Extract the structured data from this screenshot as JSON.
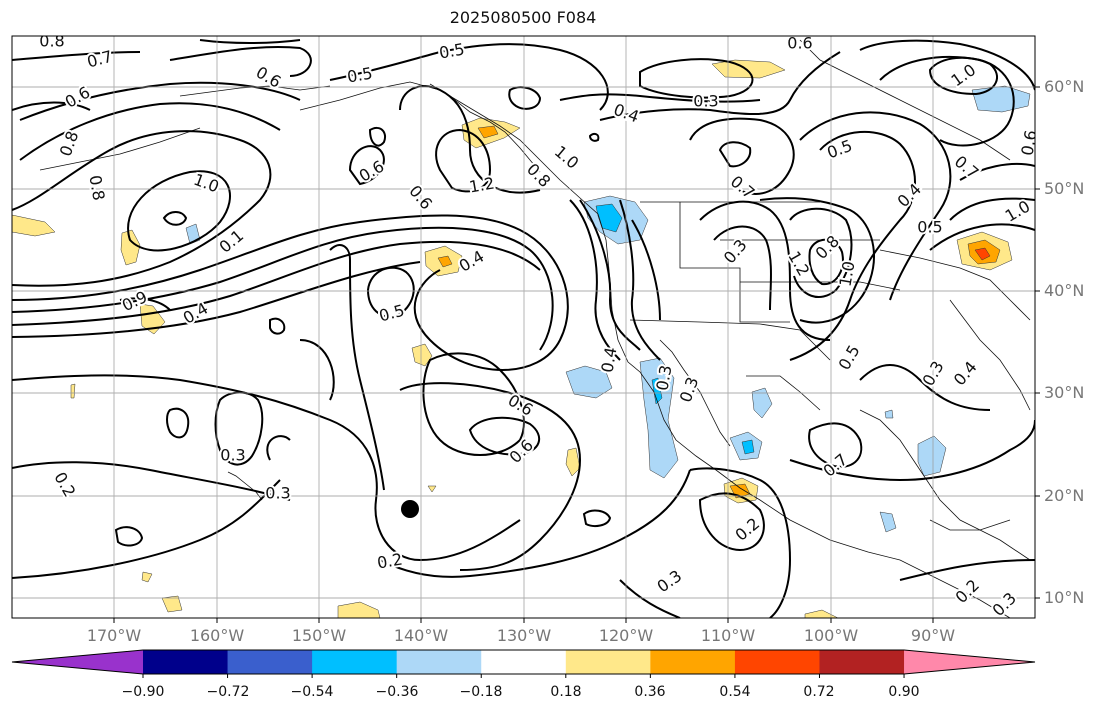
{
  "title": "2025080500 F084",
  "latitude_labels": [
    "60°N",
    "50°N",
    "40°N",
    "30°N",
    "20°N",
    "10°N"
  ],
  "longitude_labels": [
    "170°W",
    "160°W",
    "150°W",
    "140°W",
    "130°W",
    "120°W",
    "110°W",
    "100°W",
    "90°W"
  ],
  "colorbar": {
    "colors": [
      "#9932cc",
      "#00008b",
      "#3a5fcd",
      "#00bfff",
      "#add8f7",
      "#ffffff",
      "#ffe88a",
      "#ffa500",
      "#ff4500",
      "#b22222",
      "#ff88aa"
    ],
    "tick_labels": [
      "−0.90",
      "−0.72",
      "−0.54",
      "−0.36",
      "−0.18",
      "0.18",
      "0.36",
      "0.54",
      "0.72",
      "0.90"
    ]
  },
  "contour_labels": [
    "0.8",
    "0.7",
    "0.6",
    "0.5",
    "0.5",
    "0.6",
    "0.6",
    "0.3",
    "0.4",
    "0.6",
    "1.0",
    "0.8",
    "0.6",
    "0.8",
    "1.0",
    "1.2",
    "1.0",
    "0.6",
    "0.8",
    "1.0",
    "0.5",
    "0.7",
    "0.5",
    "0.4",
    "0.7",
    "0.3",
    "0.8",
    "1.2",
    "1.0",
    "0.1",
    "0.9",
    "0.4",
    "0.5",
    "0.4",
    "0.5",
    "0.4",
    "0.6",
    "0.3",
    "0.2",
    "0.3",
    "0.3",
    "0.6",
    "0.7",
    "0.2",
    "0.3",
    "0.2",
    "0.3",
    "0.4",
    "0.3",
    "0.3",
    "0.2"
  ]
}
